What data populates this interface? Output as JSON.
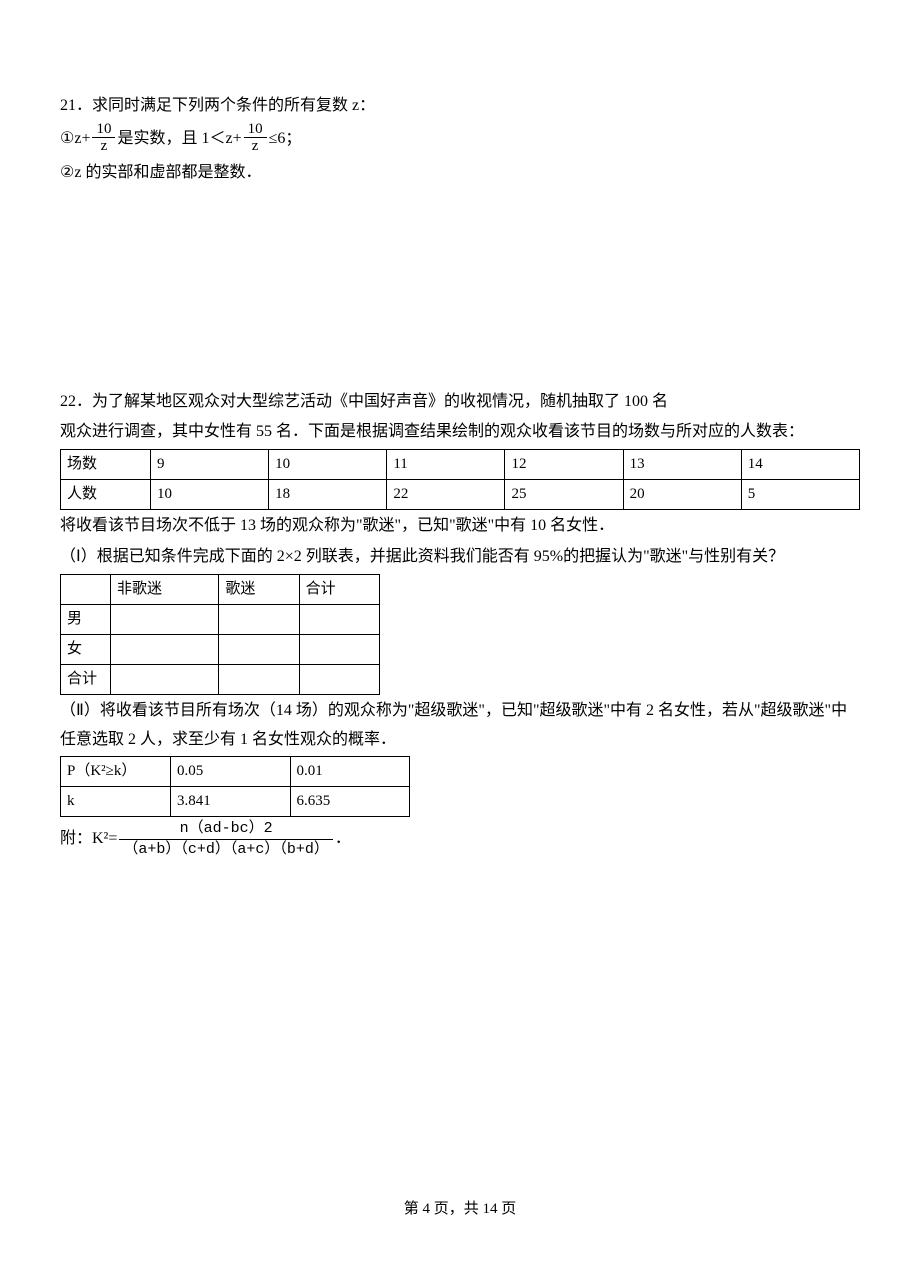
{
  "problem21": {
    "number": "21．",
    "title": "求同时满足下列两个条件的所有复数 z：",
    "cond1_prefix": "①z+",
    "frac1_num": "10",
    "frac1_den": "z",
    "cond1_mid": "是实数，且 1＜z+",
    "frac2_num": "10",
    "frac2_den": "z",
    "cond1_suffix": "≤6；",
    "cond2": "②z 的实部和虚部都是整数．"
  },
  "problem22": {
    "number": "22．",
    "intro1": "为了解某地区观众对大型综艺活动《中国好声音》的收视情况，随机抽取了 100 名",
    "intro2": "观众进行调查，其中女性有 55 名．下面是根据调查结果绘制的观众收看该节目的场数与所对应的人数表：",
    "table1": {
      "row1_label": "场数",
      "row1": [
        "9",
        "10",
        "11",
        "12",
        "13",
        "14"
      ],
      "row2_label": "人数",
      "row2": [
        "10",
        "18",
        "22",
        "25",
        "20",
        "5"
      ]
    },
    "para1": "将收看该节目场次不低于 13 场的观众称为\"歌迷\"，已知\"歌迷\"中有 10 名女性．",
    "part1": "（Ⅰ）根据已知条件完成下面的 2×2 列联表，并据此资料我们能否有 95%的把握认为\"歌迷\"与性别有关？",
    "table2": {
      "headers": [
        "",
        "非歌迷",
        "歌迷",
        "合计"
      ],
      "rows": [
        "男",
        "女",
        "合计"
      ]
    },
    "part2": "（Ⅱ）将收看该节目所有场次（14 场）的观众称为\"超级歌迷\"，已知\"超级歌迷\"中有 2 名女性，若从\"超级歌迷\"中任意选取 2 人，求至少有 1 名女性观众的概率．",
    "table3": {
      "row1": [
        "P（K²≥k）",
        "0.05",
        "0.01"
      ],
      "row2": [
        "k",
        "3.841",
        "6.635"
      ]
    },
    "appendix_prefix": "附：K²=",
    "k2_num": "n（ad-bc）2",
    "k2_den": "（a+b）（c+d）（a+c）（b+d）",
    "appendix_suffix": "．"
  },
  "footer": {
    "text": "第 4 页，共 14 页"
  }
}
